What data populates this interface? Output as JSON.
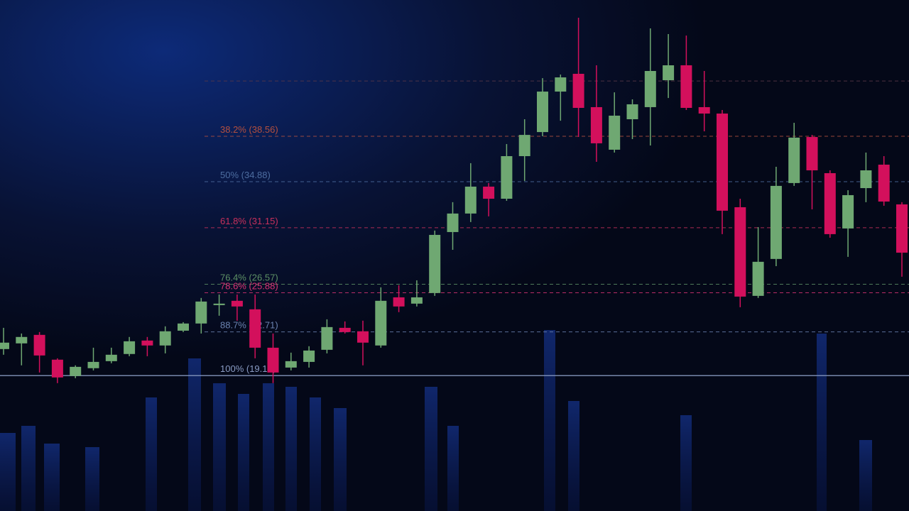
{
  "chart_data": {
    "type": "candlestick",
    "ylim": [
      8.2,
      49.6
    ],
    "up_color": "#6fa872",
    "down_color": "#d3105c",
    "open": [
      21.32,
      21.78,
      22.47,
      20.46,
      19.14,
      19.77,
      20.34,
      20.92,
      22.01,
      21.61,
      22.81,
      23.39,
      24.88,
      25.23,
      24.54,
      21.43,
      19.82,
      20.28,
      21.26,
      23.04,
      22.76,
      21.61,
      25.51,
      25.0,
      25.86,
      30.8,
      32.3,
      34.48,
      33.5,
      36.95,
      38.9,
      42.18,
      43.62,
      40.92,
      37.47,
      39.94,
      40.92,
      43.1,
      44.31,
      40.92,
      40.4,
      32.81,
      25.63,
      28.62,
      34.77,
      38.5,
      35.57,
      31.09,
      34.36,
      36.26,
      33.04
    ],
    "high": [
      23.04,
      22.58,
      22.7,
      20.57,
      20.0,
      21.43,
      21.43,
      22.3,
      22.3,
      23.16,
      23.5,
      25.46,
      25.74,
      25.74,
      25.74,
      22.58,
      21.03,
      21.55,
      23.73,
      23.56,
      23.62,
      26.32,
      26.49,
      26.89,
      30.92,
      33.22,
      36.38,
      34.77,
      37.93,
      39.94,
      43.27,
      43.56,
      48.16,
      44.31,
      42.12,
      41.55,
      47.3,
      46.84,
      46.72,
      43.85,
      40.69,
      33.5,
      31.2,
      36.09,
      39.65,
      38.67,
      35.8,
      34.19,
      37.24,
      36.95,
      33.22
    ],
    "low": [
      20.86,
      20.0,
      19.42,
      18.56,
      18.96,
      19.59,
      20.17,
      20.74,
      20.74,
      20.97,
      22.7,
      22.58,
      24.02,
      23.62,
      20.57,
      18.56,
      19.59,
      19.82,
      20.97,
      22.58,
      20.0,
      21.43,
      24.31,
      24.77,
      25.63,
      29.36,
      31.61,
      32.07,
      33.33,
      34.94,
      38.56,
      39.82,
      38.5,
      36.49,
      37.24,
      38.33,
      37.81,
      41.66,
      40.69,
      38.96,
      30.63,
      24.71,
      25.46,
      28.04,
      34.54,
      32.64,
      30.34,
      28.79,
      33.22,
      32.93,
      27.18
    ],
    "close": [
      21.84,
      22.3,
      20.8,
      19.02,
      19.88,
      20.28,
      20.86,
      21.95,
      21.61,
      22.76,
      23.39,
      25.17,
      25.0,
      24.77,
      21.43,
      19.42,
      20.34,
      21.2,
      23.1,
      22.7,
      21.84,
      25.23,
      24.77,
      25.51,
      30.57,
      32.3,
      34.48,
      33.5,
      36.95,
      38.67,
      42.18,
      43.33,
      40.86,
      37.99,
      40.23,
      41.15,
      43.85,
      44.31,
      40.86,
      40.4,
      32.53,
      25.57,
      28.39,
      34.54,
      38.45,
      35.8,
      30.63,
      33.79,
      35.8,
      33.27,
      29.13
    ],
    "levels": [
      {
        "value": 43.04,
        "label": null,
        "color": "#5a3848"
      },
      {
        "value": 38.56,
        "label": "38.2% (38.56)",
        "color": "#b4503f"
      },
      {
        "value": 34.88,
        "label": "50% (34.88)",
        "color": "#4d6da0"
      },
      {
        "value": 31.15,
        "label": "61.8% (31.15)",
        "color": "#c8305c"
      },
      {
        "value": 26.57,
        "label": "76.4% (26.57)",
        "color": "#5d9065"
      },
      {
        "value": 25.88,
        "label": "78.6% (25.88)",
        "color": "#d83374"
      },
      {
        "value": 22.71,
        "label": "88.7% (22.71)",
        "color": "#6a82b0"
      },
      {
        "value": 19.17,
        "label": "100% (19.17)",
        "color": "#8a9cc4"
      }
    ]
  }
}
